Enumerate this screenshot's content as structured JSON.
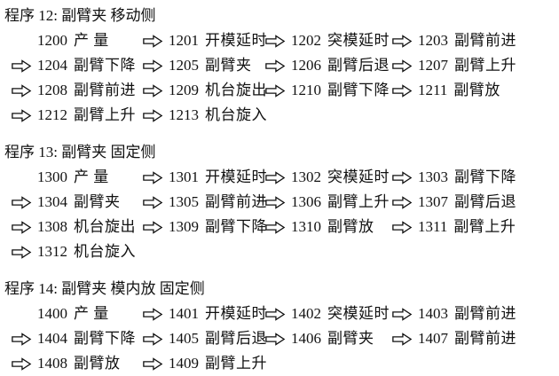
{
  "colors": {
    "background": "#ffffff",
    "text": "#111111",
    "arrow_fill": "#ffffff",
    "arrow_outline": "#111111"
  },
  "icons": {
    "right_arrow": "⇨"
  },
  "programs": [
    {
      "title": "程序 12: 副臂夹 移动侧",
      "steps": [
        {
          "code": "1200",
          "label": "产 量",
          "arrow": false
        },
        {
          "code": "1201",
          "label": "开模延时",
          "arrow": true
        },
        {
          "code": "1202",
          "label": "突模延时",
          "arrow": true
        },
        {
          "code": "1203",
          "label": "副臂前进",
          "arrow": true
        },
        {
          "code": "1204",
          "label": "副臂下降",
          "arrow": true
        },
        {
          "code": "1205",
          "label": "副臂夹",
          "arrow": true
        },
        {
          "code": "1206",
          "label": "副臂后退",
          "arrow": true
        },
        {
          "code": "1207",
          "label": "副臂上升",
          "arrow": true
        },
        {
          "code": "1208",
          "label": "副臂前进",
          "arrow": true
        },
        {
          "code": "1209",
          "label": "机台旋出",
          "arrow": true
        },
        {
          "code": "1210",
          "label": "副臂下降",
          "arrow": true
        },
        {
          "code": "1211",
          "label": "副臂放",
          "arrow": true
        },
        {
          "code": "1212",
          "label": "副臂上升",
          "arrow": true
        },
        {
          "code": "1213",
          "label": "机台旋入",
          "arrow": true
        }
      ]
    },
    {
      "title": "程序 13: 副臂夹 固定侧",
      "steps": [
        {
          "code": "1300",
          "label": "产 量",
          "arrow": false
        },
        {
          "code": "1301",
          "label": "开模延时",
          "arrow": true
        },
        {
          "code": "1302",
          "label": "突模延时",
          "arrow": true
        },
        {
          "code": "1303",
          "label": "副臂下降",
          "arrow": true
        },
        {
          "code": "1304",
          "label": "副臂夹",
          "arrow": true
        },
        {
          "code": "1305",
          "label": "副臂前进",
          "arrow": true
        },
        {
          "code": "1306",
          "label": "副臂上升",
          "arrow": true
        },
        {
          "code": "1307",
          "label": "副臂后退",
          "arrow": true
        },
        {
          "code": "1308",
          "label": "机台旋出",
          "arrow": true
        },
        {
          "code": "1309",
          "label": "副臂下降",
          "arrow": true
        },
        {
          "code": "1310",
          "label": "副臂放",
          "arrow": true
        },
        {
          "code": "1311",
          "label": "副臂上升",
          "arrow": true
        },
        {
          "code": "1312",
          "label": "机台旋入",
          "arrow": true
        }
      ]
    },
    {
      "title": "程序 14: 副臂夹 模内放 固定侧",
      "steps": [
        {
          "code": "1400",
          "label": "产 量",
          "arrow": false
        },
        {
          "code": "1401",
          "label": "开模延时",
          "arrow": true
        },
        {
          "code": "1402",
          "label": "突模延时",
          "arrow": true
        },
        {
          "code": "1403",
          "label": "副臂前进",
          "arrow": true
        },
        {
          "code": "1404",
          "label": "副臂下降",
          "arrow": true
        },
        {
          "code": "1405",
          "label": "副臂后退",
          "arrow": true
        },
        {
          "code": "1406",
          "label": "副臂夹",
          "arrow": true
        },
        {
          "code": "1407",
          "label": "副臂前进",
          "arrow": true
        },
        {
          "code": "1408",
          "label": "副臂放",
          "arrow": true
        },
        {
          "code": "1409",
          "label": "副臂上升",
          "arrow": true
        }
      ]
    }
  ]
}
